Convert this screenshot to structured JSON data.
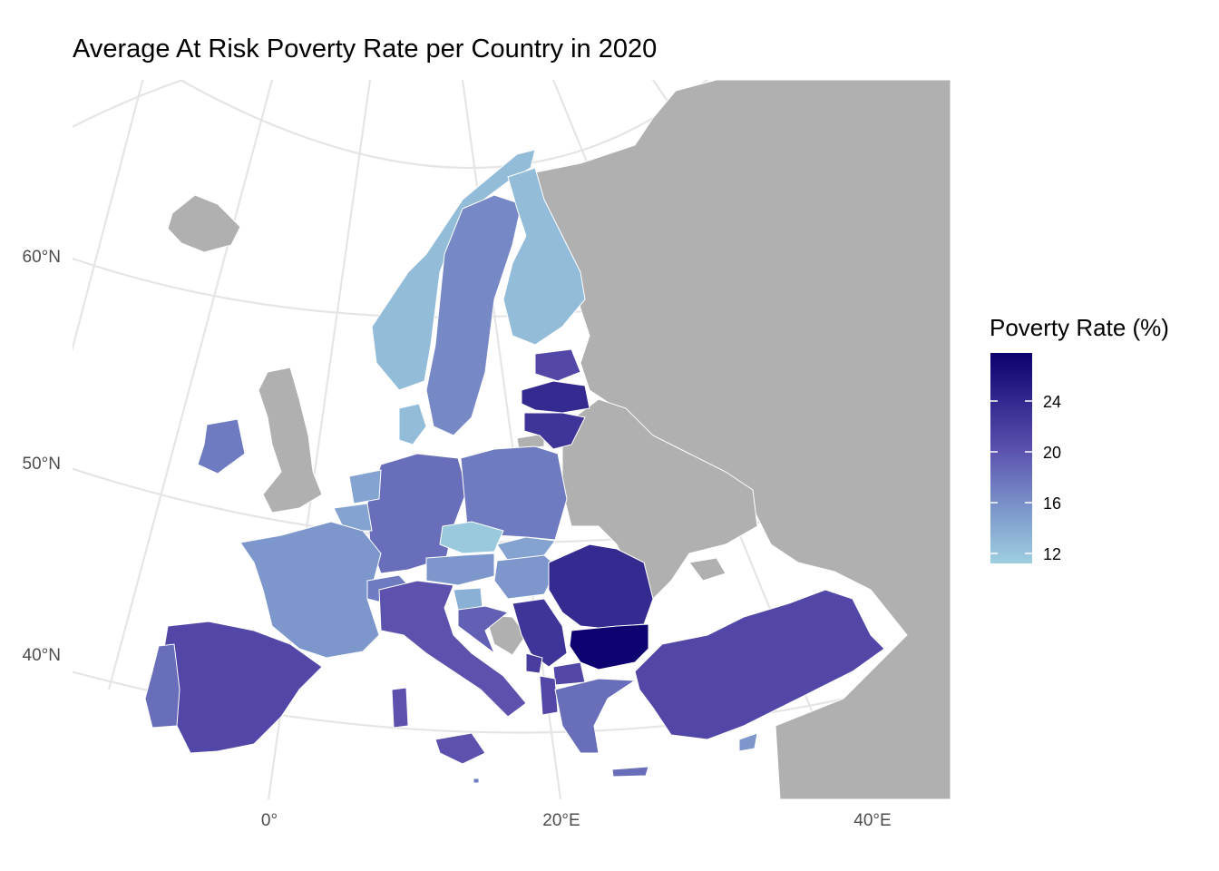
{
  "map": {
    "title": "Average At Risk Poverty Rate per Country in 2020",
    "latitude_labels": [
      "60°N",
      "50°N",
      "40°N"
    ],
    "longitude_labels": [
      "0°",
      "20°E",
      "40°E"
    ],
    "no_data_color": "#b0b0b0",
    "countries": [
      {
        "name": "Norway",
        "value": 12
      },
      {
        "name": "Sweden",
        "value": 16
      },
      {
        "name": "Finland",
        "value": 12
      },
      {
        "name": "Estonia",
        "value": 21
      },
      {
        "name": "Latvia",
        "value": 24
      },
      {
        "name": "Lithuania",
        "value": 23
      },
      {
        "name": "Denmark",
        "value": 12
      },
      {
        "name": "Ireland",
        "value": 17
      },
      {
        "name": "Germany",
        "value": 18
      },
      {
        "name": "Poland",
        "value": 17
      },
      {
        "name": "Czechia",
        "value": 11
      },
      {
        "name": "Slovakia",
        "value": 14
      },
      {
        "name": "Austria",
        "value": 15
      },
      {
        "name": "Hungary",
        "value": 15
      },
      {
        "name": "Netherlands",
        "value": 14
      },
      {
        "name": "Belgium",
        "value": 14
      },
      {
        "name": "France",
        "value": 15
      },
      {
        "name": "Switzerland",
        "value": 17
      },
      {
        "name": "Italy",
        "value": 20
      },
      {
        "name": "Slovenia",
        "value": 13
      },
      {
        "name": "Croatia",
        "value": 19
      },
      {
        "name": "Serbia",
        "value": 23
      },
      {
        "name": "Romania",
        "value": 24
      },
      {
        "name": "Bulgaria",
        "value": 28
      },
      {
        "name": "Montenegro",
        "value": 22
      },
      {
        "name": "North Macedonia",
        "value": 21
      },
      {
        "name": "Albania",
        "value": 21
      },
      {
        "name": "Greece",
        "value": 18
      },
      {
        "name": "Turkey",
        "value": 21
      },
      {
        "name": "Spain",
        "value": 21
      },
      {
        "name": "Portugal",
        "value": 18
      },
      {
        "name": "Cyprus",
        "value": 15
      },
      {
        "name": "Malta",
        "value": 17
      }
    ]
  },
  "legend": {
    "title": "Poverty Rate (%)",
    "ticks": [
      "24",
      "20",
      "16",
      "12"
    ],
    "low_color": "#9ecfe0",
    "high_color": "#0b006e",
    "min": 10.5,
    "max": 28.2
  }
}
